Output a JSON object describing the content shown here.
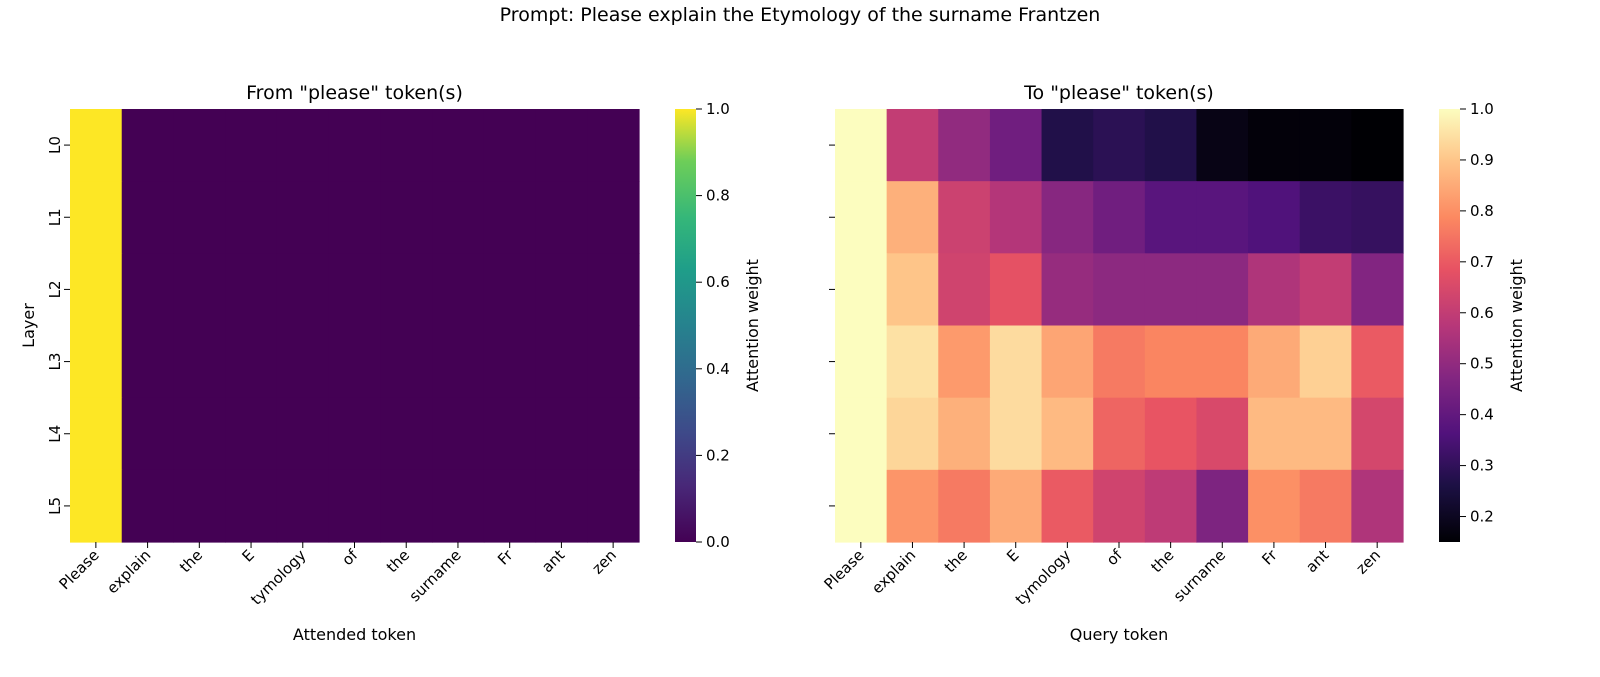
{
  "suptitle": "Prompt: Please explain the Etymology of the surname Frantzen",
  "chart_data": [
    {
      "type": "heatmap",
      "title": "From \"please\" token(s)",
      "xlabel": "Attended token",
      "ylabel": "Layer",
      "x_tick_labels": [
        "Please",
        "explain",
        "the",
        "E",
        "tymology",
        "of",
        "the",
        "surname",
        "Fr",
        "ant",
        "zen"
      ],
      "y_tick_labels": [
        "L0",
        "L1",
        "L2",
        "L3",
        "L4",
        "L5"
      ],
      "colormap": "viridis",
      "colorbar": {
        "label": "Attention weight",
        "min": 0.0,
        "max": 1.0,
        "ticks": [
          "0.0",
          "0.2",
          "0.4",
          "0.6",
          "0.8",
          "1.0"
        ]
      },
      "values": [
        [
          1.0,
          0,
          0,
          0,
          0,
          0,
          0,
          0,
          0,
          0,
          0
        ],
        [
          1.0,
          0,
          0,
          0,
          0,
          0,
          0,
          0,
          0,
          0,
          0
        ],
        [
          1.0,
          0,
          0,
          0,
          0,
          0,
          0,
          0,
          0,
          0,
          0
        ],
        [
          1.0,
          0,
          0,
          0,
          0,
          0,
          0,
          0,
          0,
          0,
          0
        ],
        [
          1.0,
          0,
          0,
          0,
          0,
          0,
          0,
          0,
          0,
          0,
          0
        ],
        [
          1.0,
          0,
          0,
          0,
          0,
          0,
          0,
          0,
          0,
          0,
          0
        ]
      ]
    },
    {
      "type": "heatmap",
      "title": "To \"please\" token(s)",
      "xlabel": "Query token",
      "ylabel": "",
      "x_tick_labels": [
        "Please",
        "explain",
        "the",
        "E",
        "tymology",
        "of",
        "the",
        "surname",
        "Fr",
        "ant",
        "zen"
      ],
      "y_tick_labels": [
        "",
        "",
        "",
        "",
        "",
        ""
      ],
      "colormap": "magma",
      "colorbar": {
        "label": "Attention weight",
        "min": 0.15,
        "max": 1.0,
        "ticks": [
          "0.2",
          "0.3",
          "0.4",
          "0.5",
          "0.6",
          "0.7",
          "0.8",
          "0.9",
          "1.0"
        ]
      },
      "values": [
        [
          1.0,
          0.6,
          0.5,
          0.43,
          0.27,
          0.29,
          0.27,
          0.18,
          0.16,
          0.16,
          0.15
        ],
        [
          1.0,
          0.86,
          0.62,
          0.57,
          0.48,
          0.43,
          0.38,
          0.38,
          0.36,
          0.32,
          0.31
        ],
        [
          1.0,
          0.9,
          0.63,
          0.68,
          0.51,
          0.49,
          0.49,
          0.49,
          0.56,
          0.6,
          0.47
        ],
        [
          1.0,
          0.95,
          0.82,
          0.94,
          0.84,
          0.76,
          0.78,
          0.78,
          0.85,
          0.92,
          0.7
        ],
        [
          1.0,
          0.93,
          0.86,
          0.94,
          0.88,
          0.72,
          0.69,
          0.65,
          0.88,
          0.88,
          0.64
        ],
        [
          1.0,
          0.81,
          0.76,
          0.85,
          0.7,
          0.63,
          0.59,
          0.46,
          0.8,
          0.76,
          0.56
        ]
      ]
    }
  ]
}
